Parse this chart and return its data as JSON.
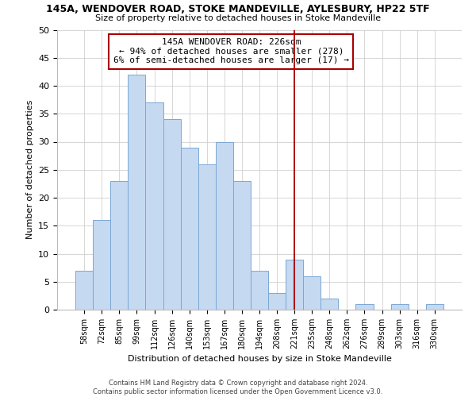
{
  "title": "145A, WENDOVER ROAD, STOKE MANDEVILLE, AYLESBURY, HP22 5TF",
  "subtitle": "Size of property relative to detached houses in Stoke Mandeville",
  "xlabel": "Distribution of detached houses by size in Stoke Mandeville",
  "ylabel": "Number of detached properties",
  "bin_labels": [
    "58sqm",
    "72sqm",
    "85sqm",
    "99sqm",
    "112sqm",
    "126sqm",
    "140sqm",
    "153sqm",
    "167sqm",
    "180sqm",
    "194sqm",
    "208sqm",
    "221sqm",
    "235sqm",
    "248sqm",
    "262sqm",
    "276sqm",
    "289sqm",
    "303sqm",
    "316sqm",
    "330sqm"
  ],
  "bar_heights": [
    7,
    16,
    23,
    42,
    37,
    34,
    29,
    26,
    30,
    23,
    7,
    3,
    9,
    6,
    2,
    0,
    1,
    0,
    1,
    0,
    1
  ],
  "bar_color": "#c5d9f1",
  "bar_edge_color": "#7ba7d4",
  "vline_x_index": 12,
  "vline_color": "#aa0000",
  "annotation_title": "145A WENDOVER ROAD: 226sqm",
  "annotation_line1": "← 94% of detached houses are smaller (278)",
  "annotation_line2": "6% of semi-detached houses are larger (17) →",
  "annotation_box_color": "#ffffff",
  "annotation_box_edge": "#aa0000",
  "ylim": [
    0,
    50
  ],
  "yticks": [
    0,
    5,
    10,
    15,
    20,
    25,
    30,
    35,
    40,
    45,
    50
  ],
  "footer_line1": "Contains HM Land Registry data © Crown copyright and database right 2024.",
  "footer_line2": "Contains public sector information licensed under the Open Government Licence v3.0.",
  "background_color": "#ffffff",
  "grid_color": "#d0d0d0"
}
